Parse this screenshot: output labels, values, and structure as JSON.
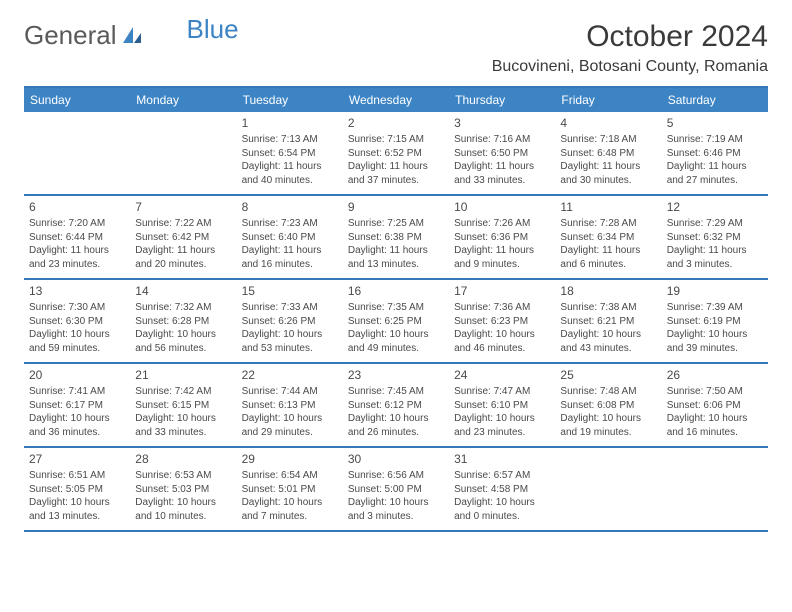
{
  "logo": {
    "text1": "General",
    "text2": "Blue"
  },
  "title": "October 2024",
  "location": "Bucovineni, Botosani County, Romania",
  "colors": {
    "header_bg": "#3d84c5",
    "header_border": "#3478b8",
    "text": "#3a3a3a",
    "cell_text": "#4a4a4a",
    "page_bg": "#ffffff"
  },
  "day_names": [
    "Sunday",
    "Monday",
    "Tuesday",
    "Wednesday",
    "Thursday",
    "Friday",
    "Saturday"
  ],
  "weeks": [
    [
      null,
      null,
      {
        "n": "1",
        "sr": "Sunrise: 7:13 AM",
        "ss": "Sunset: 6:54 PM",
        "dl": "Daylight: 11 hours and 40 minutes."
      },
      {
        "n": "2",
        "sr": "Sunrise: 7:15 AM",
        "ss": "Sunset: 6:52 PM",
        "dl": "Daylight: 11 hours and 37 minutes."
      },
      {
        "n": "3",
        "sr": "Sunrise: 7:16 AM",
        "ss": "Sunset: 6:50 PM",
        "dl": "Daylight: 11 hours and 33 minutes."
      },
      {
        "n": "4",
        "sr": "Sunrise: 7:18 AM",
        "ss": "Sunset: 6:48 PM",
        "dl": "Daylight: 11 hours and 30 minutes."
      },
      {
        "n": "5",
        "sr": "Sunrise: 7:19 AM",
        "ss": "Sunset: 6:46 PM",
        "dl": "Daylight: 11 hours and 27 minutes."
      }
    ],
    [
      {
        "n": "6",
        "sr": "Sunrise: 7:20 AM",
        "ss": "Sunset: 6:44 PM",
        "dl": "Daylight: 11 hours and 23 minutes."
      },
      {
        "n": "7",
        "sr": "Sunrise: 7:22 AM",
        "ss": "Sunset: 6:42 PM",
        "dl": "Daylight: 11 hours and 20 minutes."
      },
      {
        "n": "8",
        "sr": "Sunrise: 7:23 AM",
        "ss": "Sunset: 6:40 PM",
        "dl": "Daylight: 11 hours and 16 minutes."
      },
      {
        "n": "9",
        "sr": "Sunrise: 7:25 AM",
        "ss": "Sunset: 6:38 PM",
        "dl": "Daylight: 11 hours and 13 minutes."
      },
      {
        "n": "10",
        "sr": "Sunrise: 7:26 AM",
        "ss": "Sunset: 6:36 PM",
        "dl": "Daylight: 11 hours and 9 minutes."
      },
      {
        "n": "11",
        "sr": "Sunrise: 7:28 AM",
        "ss": "Sunset: 6:34 PM",
        "dl": "Daylight: 11 hours and 6 minutes."
      },
      {
        "n": "12",
        "sr": "Sunrise: 7:29 AM",
        "ss": "Sunset: 6:32 PM",
        "dl": "Daylight: 11 hours and 3 minutes."
      }
    ],
    [
      {
        "n": "13",
        "sr": "Sunrise: 7:30 AM",
        "ss": "Sunset: 6:30 PM",
        "dl": "Daylight: 10 hours and 59 minutes."
      },
      {
        "n": "14",
        "sr": "Sunrise: 7:32 AM",
        "ss": "Sunset: 6:28 PM",
        "dl": "Daylight: 10 hours and 56 minutes."
      },
      {
        "n": "15",
        "sr": "Sunrise: 7:33 AM",
        "ss": "Sunset: 6:26 PM",
        "dl": "Daylight: 10 hours and 53 minutes."
      },
      {
        "n": "16",
        "sr": "Sunrise: 7:35 AM",
        "ss": "Sunset: 6:25 PM",
        "dl": "Daylight: 10 hours and 49 minutes."
      },
      {
        "n": "17",
        "sr": "Sunrise: 7:36 AM",
        "ss": "Sunset: 6:23 PM",
        "dl": "Daylight: 10 hours and 46 minutes."
      },
      {
        "n": "18",
        "sr": "Sunrise: 7:38 AM",
        "ss": "Sunset: 6:21 PM",
        "dl": "Daylight: 10 hours and 43 minutes."
      },
      {
        "n": "19",
        "sr": "Sunrise: 7:39 AM",
        "ss": "Sunset: 6:19 PM",
        "dl": "Daylight: 10 hours and 39 minutes."
      }
    ],
    [
      {
        "n": "20",
        "sr": "Sunrise: 7:41 AM",
        "ss": "Sunset: 6:17 PM",
        "dl": "Daylight: 10 hours and 36 minutes."
      },
      {
        "n": "21",
        "sr": "Sunrise: 7:42 AM",
        "ss": "Sunset: 6:15 PM",
        "dl": "Daylight: 10 hours and 33 minutes."
      },
      {
        "n": "22",
        "sr": "Sunrise: 7:44 AM",
        "ss": "Sunset: 6:13 PM",
        "dl": "Daylight: 10 hours and 29 minutes."
      },
      {
        "n": "23",
        "sr": "Sunrise: 7:45 AM",
        "ss": "Sunset: 6:12 PM",
        "dl": "Daylight: 10 hours and 26 minutes."
      },
      {
        "n": "24",
        "sr": "Sunrise: 7:47 AM",
        "ss": "Sunset: 6:10 PM",
        "dl": "Daylight: 10 hours and 23 minutes."
      },
      {
        "n": "25",
        "sr": "Sunrise: 7:48 AM",
        "ss": "Sunset: 6:08 PM",
        "dl": "Daylight: 10 hours and 19 minutes."
      },
      {
        "n": "26",
        "sr": "Sunrise: 7:50 AM",
        "ss": "Sunset: 6:06 PM",
        "dl": "Daylight: 10 hours and 16 minutes."
      }
    ],
    [
      {
        "n": "27",
        "sr": "Sunrise: 6:51 AM",
        "ss": "Sunset: 5:05 PM",
        "dl": "Daylight: 10 hours and 13 minutes."
      },
      {
        "n": "28",
        "sr": "Sunrise: 6:53 AM",
        "ss": "Sunset: 5:03 PM",
        "dl": "Daylight: 10 hours and 10 minutes."
      },
      {
        "n": "29",
        "sr": "Sunrise: 6:54 AM",
        "ss": "Sunset: 5:01 PM",
        "dl": "Daylight: 10 hours and 7 minutes."
      },
      {
        "n": "30",
        "sr": "Sunrise: 6:56 AM",
        "ss": "Sunset: 5:00 PM",
        "dl": "Daylight: 10 hours and 3 minutes."
      },
      {
        "n": "31",
        "sr": "Sunrise: 6:57 AM",
        "ss": "Sunset: 4:58 PM",
        "dl": "Daylight: 10 hours and 0 minutes."
      },
      null,
      null
    ]
  ]
}
